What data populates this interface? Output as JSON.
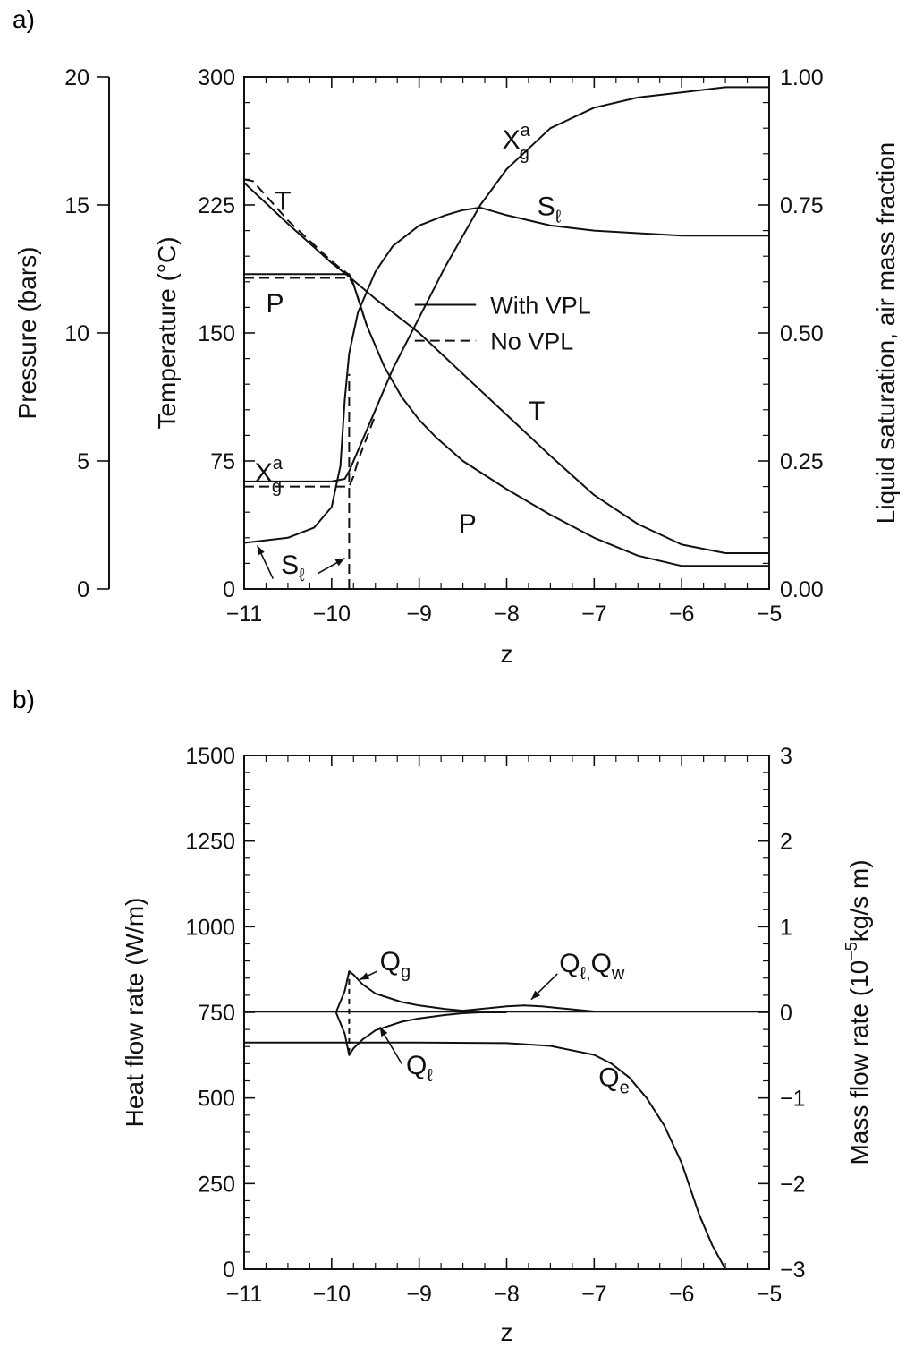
{
  "panel_labels": {
    "a": "a)",
    "b": "b)"
  },
  "chart_data": [
    {
      "id": "a",
      "type": "line",
      "xlabel": "z",
      "xlim": [
        -11,
        -5
      ],
      "xticks": [
        -11,
        -10,
        -9,
        -8,
        -7,
        -6,
        -5
      ],
      "xtick_labels": [
        "−11",
        "−10",
        "−9",
        "−8",
        "−7",
        "−6",
        "−5"
      ],
      "y_axes": {
        "pressure": {
          "label": "Pressure (bars)",
          "lim": [
            0,
            20
          ],
          "ticks": [
            0,
            5,
            10,
            15,
            20
          ],
          "tick_labels": [
            "0",
            "5",
            "10",
            "15",
            "20"
          ]
        },
        "temperature": {
          "label": "Temperature (°C)",
          "lim": [
            0,
            300
          ],
          "ticks": [
            0,
            75,
            150,
            225,
            300
          ],
          "tick_labels": [
            "0",
            "75",
            "150",
            "225",
            "300"
          ]
        },
        "fraction": {
          "label": "Liquid saturation, air mass fraction",
          "lim": [
            0,
            1
          ],
          "ticks": [
            0,
            0.25,
            0.5,
            0.75,
            1
          ],
          "tick_labels": [
            "0.00",
            "0.25",
            "0.50",
            "0.75",
            "1.00"
          ]
        }
      },
      "legend": {
        "position": "center-right",
        "entries": [
          {
            "label": "With VPL",
            "style": "solid"
          },
          {
            "label": "No VPL",
            "style": "dashed"
          }
        ]
      },
      "annotations": [
        {
          "text": "X",
          "sup": "a",
          "sub": "g",
          "at": [
            -8.05,
            0.86
          ]
        },
        {
          "text": "T",
          "at": [
            -10.65,
            0.74
          ]
        },
        {
          "text": "S",
          "sub": "ℓ",
          "at": [
            -7.65,
            0.73
          ]
        },
        {
          "text": "P",
          "at": [
            -10.75,
            0.54
          ]
        },
        {
          "text": "T",
          "at": [
            -7.75,
            0.33
          ]
        },
        {
          "text": "X",
          "sup": "a",
          "sub": "g",
          "at": [
            -10.88,
            0.21
          ]
        },
        {
          "text": "P",
          "at": [
            -8.55,
            0.11
          ]
        },
        {
          "text": "S",
          "sub": "ℓ",
          "at": [
            -10.58,
            0.03
          ]
        }
      ],
      "series": [
        {
          "name": "T",
          "axis": "temperature",
          "style": "solid",
          "x": [
            -11,
            -10.5,
            -10,
            -9.8,
            -9.5,
            -9,
            -8.5,
            -8,
            -7.5,
            -7,
            -6.5,
            -6,
            -5.5,
            -5
          ],
          "y": [
            238,
            214,
            191,
            183,
            170,
            150,
            126,
            102,
            78,
            55,
            38,
            26,
            21,
            21
          ]
        },
        {
          "name": "T",
          "axis": "temperature",
          "style": "dashed",
          "x": [
            -11,
            -10.9,
            -10.5,
            -10,
            -9.8
          ],
          "y": [
            240,
            239,
            216,
            192,
            184
          ]
        },
        {
          "name": "P",
          "axis": "pressure",
          "style": "solid",
          "x": [
            -11,
            -9.8,
            -9.75,
            -9.6,
            -9.4,
            -9.2,
            -9,
            -8.8,
            -8.5,
            -8,
            -7.5,
            -7,
            -6.5,
            -6,
            -5.5,
            -5
          ],
          "y": [
            12.3,
            12.3,
            11.9,
            10.3,
            8.7,
            7.5,
            6.6,
            5.9,
            5.0,
            3.9,
            2.9,
            2.0,
            1.3,
            0.9,
            0.9,
            0.9
          ]
        },
        {
          "name": "P",
          "axis": "pressure",
          "style": "dashed",
          "x": [
            -11,
            -9.8,
            -9.75,
            -9.6
          ],
          "y": [
            12.15,
            12.15,
            11.9,
            10.3
          ]
        },
        {
          "name": "Xga",
          "axis": "fraction",
          "style": "solid",
          "x": [
            -11,
            -10,
            -9.85,
            -9.8,
            -9.7,
            -9.5,
            -9.3,
            -9,
            -8.7,
            -8.5,
            -8.3,
            -8,
            -7.5,
            -7,
            -6.5,
            -6,
            -5.5,
            -5
          ],
          "y": [
            0.21,
            0.21,
            0.215,
            0.23,
            0.27,
            0.35,
            0.43,
            0.53,
            0.63,
            0.69,
            0.75,
            0.82,
            0.9,
            0.94,
            0.96,
            0.97,
            0.98,
            0.98
          ]
        },
        {
          "name": "Xga",
          "axis": "fraction",
          "style": "dashed",
          "x": [
            -11,
            -9.8,
            -9.75,
            -9.7,
            -9.5
          ],
          "y": [
            0.2,
            0.2,
            0.22,
            0.25,
            0.34
          ]
        },
        {
          "name": "Sl",
          "axis": "fraction",
          "style": "solid",
          "x": [
            -11,
            -10.5,
            -10.2,
            -10,
            -9.9,
            -9.85,
            -9.8,
            -9.7,
            -9.5,
            -9.3,
            -9,
            -8.7,
            -8.5,
            -8.3,
            -8,
            -7.5,
            -7,
            -6.5,
            -6,
            -5.5,
            -5
          ],
          "y": [
            0.09,
            0.1,
            0.12,
            0.16,
            0.24,
            0.37,
            0.46,
            0.54,
            0.62,
            0.67,
            0.71,
            0.73,
            0.74,
            0.745,
            0.73,
            0.71,
            0.7,
            0.695,
            0.69,
            0.69,
            0.69
          ]
        },
        {
          "name": "Sl",
          "axis": "fraction",
          "style": "dashed",
          "x": [
            -9.8,
            -9.8
          ],
          "y": [
            0.0,
            0.42
          ]
        }
      ]
    },
    {
      "id": "b",
      "type": "line",
      "xlabel": "z",
      "xlim": [
        -11,
        -5
      ],
      "xticks": [
        -11,
        -10,
        -9,
        -8,
        -7,
        -6,
        -5
      ],
      "xtick_labels": [
        "−11",
        "−10",
        "−9",
        "−8",
        "−7",
        "−6",
        "−5"
      ],
      "y_axes": {
        "heat": {
          "label": "Heat flow rate (W/m)",
          "lim": [
            0,
            1500
          ],
          "ticks": [
            0,
            250,
            500,
            750,
            1000,
            1250,
            1500
          ],
          "tick_labels": [
            "0",
            "250",
            "500",
            "750",
            "1000",
            "1250",
            "1500"
          ]
        },
        "mass": {
          "label": "Mass flow rate (10−5kg/s m)",
          "label_parts": {
            "pre": "Mass flow rate (10",
            "sup": "−5",
            "post": "kg/s m)"
          },
          "lim": [
            -3,
            3
          ],
          "ticks": [
            -3,
            -2,
            -1,
            0,
            1,
            2,
            3
          ],
          "tick_labels": [
            "−3",
            "−2",
            "−1",
            "0",
            "1",
            "2",
            "3"
          ]
        }
      },
      "annotations": [
        {
          "text": "Q",
          "sub": "g",
          "at": [
            -9.45,
            0.49
          ]
        },
        {
          "text": "Q",
          "sub": "ℓ,",
          "text2": "Q",
          "sub2": "w",
          "at": [
            -7.4,
            0.47
          ]
        },
        {
          "text": "Q",
          "sub": "ℓ",
          "at": [
            -9.15,
            -0.72
          ]
        },
        {
          "text": "Q",
          "sub": "e",
          "at": [
            -6.95,
            -0.86
          ]
        }
      ],
      "series": [
        {
          "name": "Qe",
          "axis": "heat",
          "style": "solid",
          "x": [
            -11,
            -9,
            -8,
            -7.5,
            -7,
            -6.8,
            -6.6,
            -6.4,
            -6.2,
            -6,
            -5.8,
            -5.65,
            -5.5
          ],
          "y": [
            662,
            662,
            660,
            652,
            626,
            600,
            560,
            500,
            420,
            310,
            160,
            70,
            0
          ]
        },
        {
          "name": "Qw",
          "axis": "heat",
          "style": "solid",
          "x": [
            -11,
            -5
          ],
          "y": [
            752,
            752
          ]
        },
        {
          "name": "Qg",
          "axis": "mass",
          "style": "solid",
          "x": [
            -9.95,
            -9.85,
            -9.8,
            -9.75,
            -9.65,
            -9.5,
            -9.2,
            -9,
            -8.7,
            -8.5,
            -8.3,
            -8
          ],
          "y": [
            0,
            0.25,
            0.48,
            0.44,
            0.33,
            0.22,
            0.12,
            0.08,
            0.04,
            0.02,
            0.01,
            0.01
          ]
        },
        {
          "name": "Ql",
          "axis": "mass",
          "style": "solid",
          "x": [
            -9.95,
            -9.85,
            -9.8,
            -9.75,
            -9.65,
            -9.5,
            -9.2,
            -9,
            -8.7,
            -8.5,
            -8.3,
            -8
          ],
          "y": [
            0,
            -0.25,
            -0.5,
            -0.42,
            -0.32,
            -0.21,
            -0.11,
            -0.07,
            -0.03,
            -0.01,
            0,
            0
          ]
        },
        {
          "name": "Ql,Qw",
          "axis": "mass",
          "style": "solid",
          "x": [
            -8.5,
            -8.2,
            -8,
            -7.8,
            -7.6,
            -7.4,
            -7.2,
            -7
          ],
          "y": [
            0.02,
            0.05,
            0.07,
            0.08,
            0.07,
            0.05,
            0.03,
            0.01
          ]
        },
        {
          "name": "Qg",
          "axis": "mass",
          "style": "dashed",
          "x": [
            -9.8,
            -9.8
          ],
          "y": [
            -0.48,
            0.46
          ]
        }
      ]
    }
  ]
}
